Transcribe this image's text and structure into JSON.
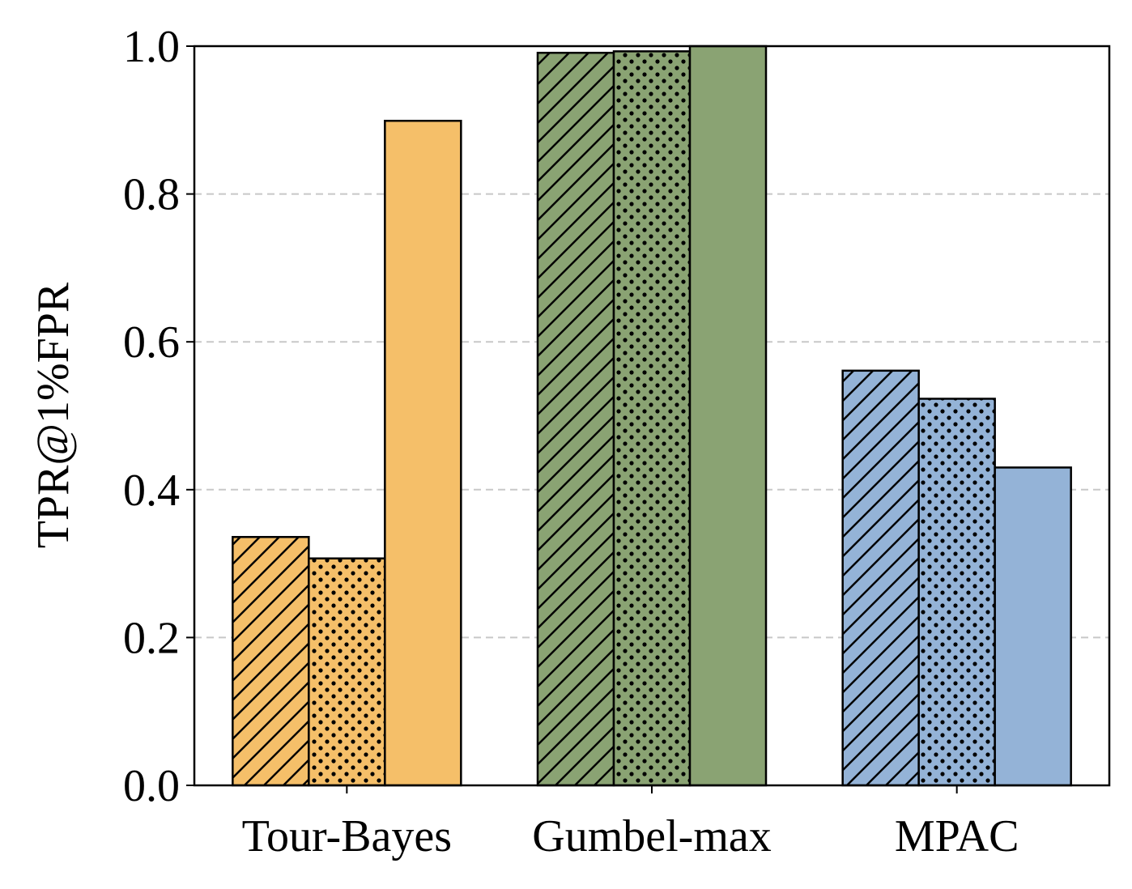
{
  "chart_data": {
    "type": "bar",
    "categories": [
      "Tour-Bayes",
      "Gumbel-max",
      "MPAC"
    ],
    "series": [
      {
        "pattern": "hatch",
        "values": [
          0.336,
          0.991,
          0.561
        ]
      },
      {
        "pattern": "dots",
        "values": [
          0.307,
          0.993,
          0.523
        ]
      },
      {
        "pattern": "solid",
        "values": [
          0.899,
          1.0,
          0.43
        ]
      }
    ],
    "category_colors": [
      "#F5BF69",
      "#8AA373",
      "#94B3D7"
    ],
    "ylabel": "TPR@1%FPR",
    "ylim": [
      0.0,
      1.0
    ],
    "yticks": [
      0.0,
      0.2,
      0.4,
      0.6,
      0.8,
      1.0
    ],
    "ytick_labels": [
      "0.0",
      "0.2",
      "0.4",
      "0.6",
      "0.8",
      "1.0"
    ],
    "grid": "y-dashed",
    "legend": "none"
  }
}
